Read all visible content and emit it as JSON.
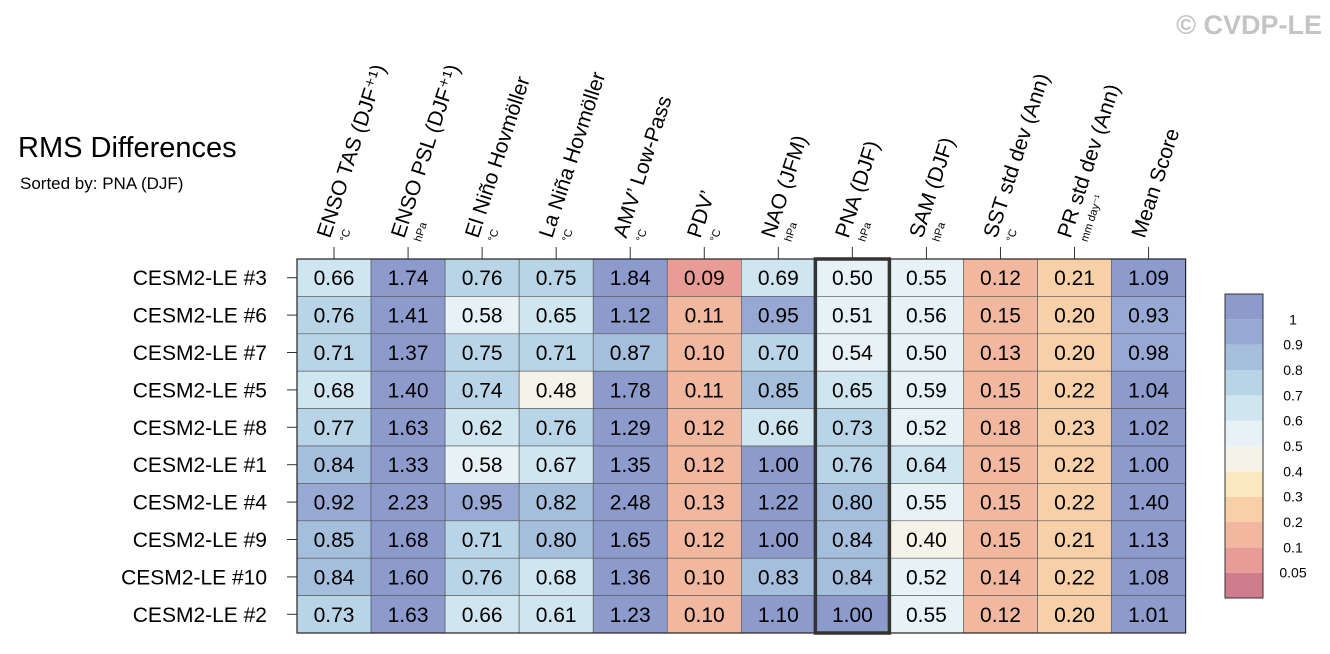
{
  "chart_data": {
    "type": "heatmap",
    "title": "RMS Differences",
    "subtitle": "Sorted by: PNA (DJF)",
    "copyright": "© CVDP-LE",
    "columns": [
      {
        "label": "ENSO TAS (DJF⁺¹)",
        "unit": "°C"
      },
      {
        "label": "ENSO PSL (DJF⁺¹)",
        "unit": "hPa"
      },
      {
        "label": "El Niño Hovmöller",
        "unit": "°C"
      },
      {
        "label": "La Niña Hovmöller",
        "unit": "°C"
      },
      {
        "label": "AMV’ Low-Pass",
        "unit": "°C"
      },
      {
        "label": "PDV’",
        "unit": "°C"
      },
      {
        "label": "NAO (JFM)",
        "unit": "hPa"
      },
      {
        "label": "PNA (DJF)",
        "unit": "hPa"
      },
      {
        "label": "SAM (DJF)",
        "unit": "hPa"
      },
      {
        "label": "SST std dev (Ann)",
        "unit": "°C"
      },
      {
        "label": "PR std dev (Ann)",
        "unit": "mm day⁻¹"
      },
      {
        "label": "Mean Score",
        "unit": ""
      }
    ],
    "rows": [
      "CESM2-LE #3",
      "CESM2-LE #6",
      "CESM2-LE #7",
      "CESM2-LE #5",
      "CESM2-LE #8",
      "CESM2-LE #1",
      "CESM2-LE #4",
      "CESM2-LE #9",
      "CESM2-LE #10",
      "CESM2-LE #2"
    ],
    "values": [
      [
        "0.66",
        "1.74",
        "0.76",
        "0.75",
        "1.84",
        "0.09",
        "0.69",
        "0.50",
        "0.55",
        "0.12",
        "0.21",
        "1.09"
      ],
      [
        "0.76",
        "1.41",
        "0.58",
        "0.65",
        "1.12",
        "0.11",
        "0.95",
        "0.51",
        "0.56",
        "0.15",
        "0.20",
        "0.93"
      ],
      [
        "0.71",
        "1.37",
        "0.75",
        "0.71",
        "0.87",
        "0.10",
        "0.70",
        "0.54",
        "0.50",
        "0.13",
        "0.20",
        "0.98"
      ],
      [
        "0.68",
        "1.40",
        "0.74",
        "0.48",
        "1.78",
        "0.11",
        "0.85",
        "0.65",
        "0.59",
        "0.15",
        "0.22",
        "1.04"
      ],
      [
        "0.77",
        "1.63",
        "0.62",
        "0.76",
        "1.29",
        "0.12",
        "0.66",
        "0.73",
        "0.52",
        "0.18",
        "0.23",
        "1.02"
      ],
      [
        "0.84",
        "1.33",
        "0.58",
        "0.67",
        "1.35",
        "0.12",
        "1.00",
        "0.76",
        "0.64",
        "0.15",
        "0.22",
        "1.00"
      ],
      [
        "0.92",
        "2.23",
        "0.95",
        "0.82",
        "2.48",
        "0.13",
        "1.22",
        "0.80",
        "0.55",
        "0.15",
        "0.22",
        "1.40"
      ],
      [
        "0.85",
        "1.68",
        "0.71",
        "0.80",
        "1.65",
        "0.12",
        "1.00",
        "0.84",
        "0.40",
        "0.15",
        "0.21",
        "1.13"
      ],
      [
        "0.84",
        "1.60",
        "0.76",
        "0.68",
        "1.36",
        "0.10",
        "0.83",
        "0.84",
        "0.52",
        "0.14",
        "0.22",
        "1.08"
      ],
      [
        "0.73",
        "1.63",
        "0.66",
        "0.61",
        "1.23",
        "0.10",
        "1.10",
        "1.00",
        "0.55",
        "0.12",
        "0.20",
        "1.01"
      ]
    ],
    "highlighted_column": "PNA (DJF)",
    "colorbar": {
      "ticks": [
        "1",
        "0.9",
        "0.8",
        "0.7",
        "0.6",
        "0.5",
        "0.4",
        "0.3",
        "0.2",
        "0.1",
        "0.05"
      ],
      "bounds": [
        0.05,
        0.1,
        0.2,
        0.3,
        0.4,
        0.5,
        0.6,
        0.7,
        0.8,
        0.9,
        1
      ],
      "colors": [
        "#d17c8c",
        "#e89c96",
        "#f1b89f",
        "#f7d0a8",
        "#fbe7c0",
        "#f5f2e7",
        "#e6f2f6",
        "#cfe5ef",
        "#b8d4e6",
        "#a5bedb",
        "#97a8d2",
        "#8c9acc"
      ]
    }
  }
}
